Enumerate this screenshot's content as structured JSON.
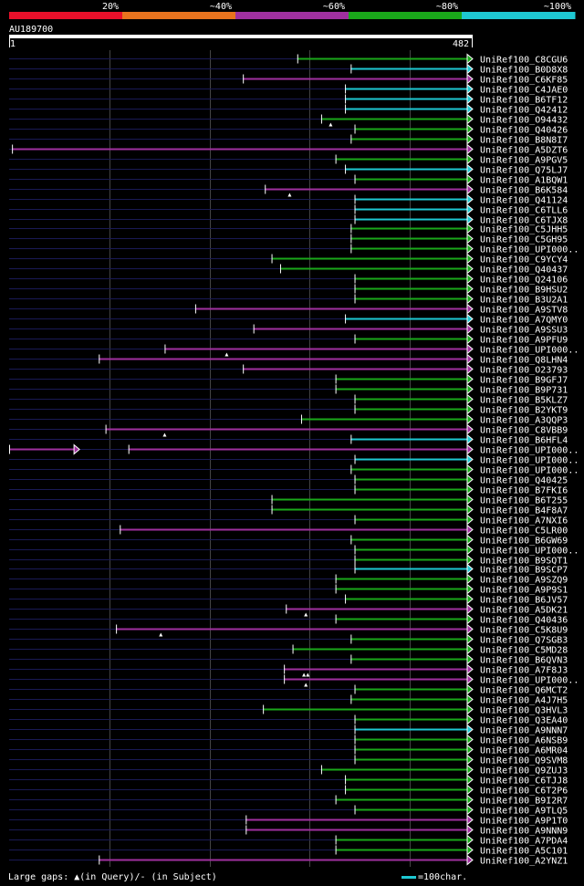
{
  "legend": {
    "segments": [
      {
        "label": "20%",
        "color": "#e8102a"
      },
      {
        "label": "~40%",
        "color": "#e8731e"
      },
      {
        "label": "~60%",
        "color": "#a0309f"
      },
      {
        "label": "~80%",
        "color": "#1aa81a"
      },
      {
        "label": "~100%",
        "color": "#1ec8d2"
      }
    ]
  },
  "query": {
    "id": "AU189700",
    "start_label": "1",
    "end_label": "482",
    "length": 482
  },
  "colors": {
    "purple": "#a0309f",
    "green": "#1aa81a",
    "cyan": "#1ec8d2",
    "track": "#1a1a55",
    "grid": "#444444"
  },
  "hits": [
    {
      "name": "UniRef100_C8CGU6",
      "start": 302,
      "color": "green"
    },
    {
      "name": "UniRef100_B0D8X8",
      "start": 358,
      "color": "cyan"
    },
    {
      "name": "UniRef100_C6KF85",
      "start": 245,
      "color": "purple"
    },
    {
      "name": "UniRef100_C4JAE0",
      "start": 352,
      "color": "cyan"
    },
    {
      "name": "UniRef100_B6TF12",
      "start": 352,
      "color": "cyan"
    },
    {
      "name": "UniRef100_Q42412",
      "start": 352,
      "color": "cyan"
    },
    {
      "name": "UniRef100_O94432",
      "start": 327,
      "color": "green",
      "marks": [
        337
      ]
    },
    {
      "name": "UniRef100_Q40426",
      "start": 362,
      "color": "green"
    },
    {
      "name": "UniRef100_B8N8I7",
      "start": 358,
      "color": "green"
    },
    {
      "name": "UniRef100_A5DZT6",
      "start": 3,
      "color": "purple"
    },
    {
      "name": "UniRef100_A9PGV5",
      "start": 342,
      "color": "green"
    },
    {
      "name": "UniRef100_Q75LJ7",
      "start": 352,
      "color": "cyan"
    },
    {
      "name": "UniRef100_A1BQW1",
      "start": 362,
      "color": "green"
    },
    {
      "name": "UniRef100_B6K584",
      "start": 268,
      "color": "purple",
      "marks": [
        294
      ]
    },
    {
      "name": "UniRef100_Q41124",
      "start": 362,
      "color": "cyan"
    },
    {
      "name": "UniRef100_C6TLL6",
      "start": 362,
      "color": "cyan"
    },
    {
      "name": "UniRef100_C6TJX8",
      "start": 362,
      "color": "cyan"
    },
    {
      "name": "UniRef100_C5JHH5",
      "start": 358,
      "color": "green"
    },
    {
      "name": "UniRef100_C5GH95",
      "start": 358,
      "color": "green"
    },
    {
      "name": "UniRef100_UPI000..",
      "start": 358,
      "color": "green"
    },
    {
      "name": "UniRef100_C9YCY4",
      "start": 275,
      "color": "green"
    },
    {
      "name": "UniRef100_Q40437",
      "start": 284,
      "color": "green"
    },
    {
      "name": "UniRef100_Q24106",
      "start": 362,
      "color": "green"
    },
    {
      "name": "UniRef100_B9HSU2",
      "start": 362,
      "color": "green"
    },
    {
      "name": "UniRef100_B3U2A1",
      "start": 362,
      "color": "green"
    },
    {
      "name": "UniRef100_A9STV8",
      "start": 195,
      "color": "purple"
    },
    {
      "name": "UniRef100_A7QMY0",
      "start": 352,
      "color": "cyan"
    },
    {
      "name": "UniRef100_A9SSU3",
      "start": 256,
      "color": "purple"
    },
    {
      "name": "UniRef100_A9PFU9",
      "start": 362,
      "color": "green"
    },
    {
      "name": "UniRef100_UPI000..",
      "start": 163,
      "color": "purple",
      "marks": [
        228
      ]
    },
    {
      "name": "UniRef100_Q8LHN4",
      "start": 94,
      "color": "purple"
    },
    {
      "name": "UniRef100_O23793",
      "start": 245,
      "color": "purple"
    },
    {
      "name": "UniRef100_B9GFJ7",
      "start": 342,
      "color": "green"
    },
    {
      "name": "UniRef100_B9P731",
      "start": 342,
      "color": "green"
    },
    {
      "name": "UniRef100_B5KLZ7",
      "start": 362,
      "color": "green"
    },
    {
      "name": "UniRef100_B2YKT9",
      "start": 362,
      "color": "green"
    },
    {
      "name": "UniRef100_A3QQP3",
      "start": 306,
      "color": "green"
    },
    {
      "name": "UniRef100_C8VBB9",
      "start": 101,
      "color": "purple",
      "marks": [
        163
      ]
    },
    {
      "name": "UniRef100_B6HFL4",
      "start": 358,
      "color": "cyan"
    },
    {
      "name": "UniRef100_UPI000..",
      "start": 125,
      "color": "purple",
      "pre": [
        0,
        68
      ]
    },
    {
      "name": "UniRef100_UPI000..",
      "start": 362,
      "color": "cyan"
    },
    {
      "name": "UniRef100_UPI000..",
      "start": 358,
      "color": "green"
    },
    {
      "name": "UniRef100_Q40425",
      "start": 362,
      "color": "green"
    },
    {
      "name": "UniRef100_B7FKI6",
      "start": 362,
      "color": "green"
    },
    {
      "name": "UniRef100_B6T255",
      "start": 275,
      "color": "green"
    },
    {
      "name": "UniRef100_B4F8A7",
      "start": 275,
      "color": "green"
    },
    {
      "name": "UniRef100_A7NXI6",
      "start": 362,
      "color": "green"
    },
    {
      "name": "UniRef100_C5LR00",
      "start": 116,
      "color": "purple"
    },
    {
      "name": "UniRef100_B6GW69",
      "start": 358,
      "color": "green"
    },
    {
      "name": "UniRef100_UPI000..",
      "start": 362,
      "color": "green"
    },
    {
      "name": "UniRef100_B9SQT1",
      "start": 362,
      "color": "green"
    },
    {
      "name": "UniRef100_B9SCP7",
      "start": 362,
      "color": "cyan"
    },
    {
      "name": "UniRef100_A9SZQ9",
      "start": 342,
      "color": "green"
    },
    {
      "name": "UniRef100_A9P9S1",
      "start": 342,
      "color": "green"
    },
    {
      "name": "UniRef100_B6JV57",
      "start": 352,
      "color": "green"
    },
    {
      "name": "UniRef100_A5DK21",
      "start": 290,
      "color": "purple",
      "marks": [
        311
      ]
    },
    {
      "name": "UniRef100_Q40436",
      "start": 342,
      "color": "green"
    },
    {
      "name": "UniRef100_C5K8U9",
      "start": 112,
      "color": "purple",
      "marks": [
        159
      ]
    },
    {
      "name": "UniRef100_Q7SGB3",
      "start": 358,
      "color": "green"
    },
    {
      "name": "UniRef100_C5MD28",
      "start": 297,
      "color": "green"
    },
    {
      "name": "UniRef100_B6QVN3",
      "start": 358,
      "color": "green"
    },
    {
      "name": "UniRef100_A7F8J3",
      "start": 288,
      "color": "purple",
      "marks": [
        309,
        313
      ]
    },
    {
      "name": "UniRef100_UPI000..",
      "start": 288,
      "color": "purple",
      "marks": [
        311
      ]
    },
    {
      "name": "UniRef100_Q6MCT2",
      "start": 362,
      "color": "green"
    },
    {
      "name": "UniRef100_A4J7H5",
      "start": 358,
      "color": "green"
    },
    {
      "name": "UniRef100_Q3HVL3",
      "start": 266,
      "color": "green"
    },
    {
      "name": "UniRef100_Q3EA40",
      "start": 362,
      "color": "green"
    },
    {
      "name": "UniRef100_A9NNN7",
      "start": 362,
      "color": "cyan"
    },
    {
      "name": "UniRef100_A6NSB9",
      "start": 362,
      "color": "green"
    },
    {
      "name": "UniRef100_A6MR04",
      "start": 362,
      "color": "green"
    },
    {
      "name": "UniRef100_Q9SVM8",
      "start": 362,
      "color": "green"
    },
    {
      "name": "UniRef100_Q9ZUJ3",
      "start": 327,
      "color": "green"
    },
    {
      "name": "UniRef100_C6TJJ8",
      "start": 352,
      "color": "green"
    },
    {
      "name": "UniRef100_C6T2P6",
      "start": 352,
      "color": "green"
    },
    {
      "name": "UniRef100_B9I2R7",
      "start": 342,
      "color": "green"
    },
    {
      "name": "UniRef100_A9TLQ5",
      "start": 362,
      "color": "green"
    },
    {
      "name": "UniRef100_A9P1T0",
      "start": 248,
      "color": "purple"
    },
    {
      "name": "UniRef100_A9NNN9",
      "start": 248,
      "color": "purple"
    },
    {
      "name": "UniRef100_A7PDA4",
      "start": 342,
      "color": "green"
    },
    {
      "name": "UniRef100_A5C101",
      "start": 342,
      "color": "green"
    },
    {
      "name": "UniRef100_A2YNZ1",
      "start": 94,
      "color": "purple"
    }
  ],
  "footer": {
    "gaps_label": "Large gaps: ▲(in Query)/- (in Subject)",
    "scale_label": "=100char."
  }
}
